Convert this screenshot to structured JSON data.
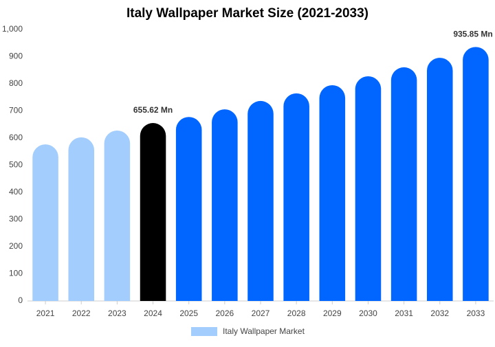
{
  "chart_data": {
    "type": "bar",
    "title": "Italy Wallpaper Market Size (2021-2033)",
    "categories": [
      "2021",
      "2022",
      "2023",
      "2024",
      "2025",
      "2026",
      "2027",
      "2028",
      "2029",
      "2030",
      "2031",
      "2032",
      "2033"
    ],
    "series": [
      {
        "name": "Italy Wallpaper Market",
        "color": "#a3cdfc",
        "colors": [
          "#a3cdfc",
          "#a3cdfc",
          "#a3cdfc",
          "#000000",
          "#0066ff",
          "#0066ff",
          "#0066ff",
          "#0066ff",
          "#0066ff",
          "#0066ff",
          "#0066ff",
          "#0066ff",
          "#0066ff"
        ],
        "values": [
          577,
          603,
          628,
          655.62,
          678,
          706,
          737,
          765,
          795,
          828,
          861,
          896,
          935.85
        ],
        "value_labels": [
          null,
          null,
          null,
          "655.62 Mn",
          null,
          null,
          null,
          null,
          null,
          null,
          null,
          null,
          "935.85 Mn"
        ]
      }
    ],
    "ylim": [
      0,
      1000
    ],
    "yticks": [
      0,
      100,
      200,
      300,
      400,
      500,
      600,
      700,
      800,
      900,
      {
        "value": 1000,
        "label": "1,000"
      }
    ],
    "grid": false
  }
}
